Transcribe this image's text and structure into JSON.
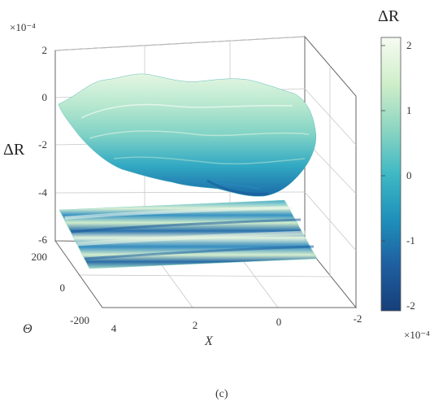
{
  "chart_data": [
    {
      "type": "surface",
      "zlabel": "ΔR",
      "xlabel": "X",
      "ylabel": "Θ",
      "z_exponent": "×10⁻⁴",
      "z_ticks": [
        "2",
        "0",
        "-2",
        "-4",
        "-6"
      ],
      "x_ticks": [
        "4",
        "2",
        "0",
        "-2"
      ],
      "y_ticks": [
        "200",
        "0",
        "-200"
      ],
      "zlim": [
        -6,
        2
      ],
      "xlim": [
        -2,
        4
      ],
      "ylim": [
        -200,
        200
      ],
      "grid": true,
      "surface_z_range": [
        -4.1,
        1.0
      ],
      "projection_plane_z": -5,
      "colormap": "teal-blue"
    },
    {
      "type": "colorbar",
      "title": "ΔR",
      "ticks": [
        "2",
        "1",
        "0",
        "-1",
        "-2"
      ],
      "range": [
        -2,
        2
      ],
      "exponent": "×10⁻⁴",
      "colors": [
        "#f6fbf2",
        "#cfeec9",
        "#8fd6c2",
        "#3fb8c4",
        "#1e8fba",
        "#1f5fa0",
        "#163f7a"
      ]
    }
  ],
  "caption": "(c)"
}
